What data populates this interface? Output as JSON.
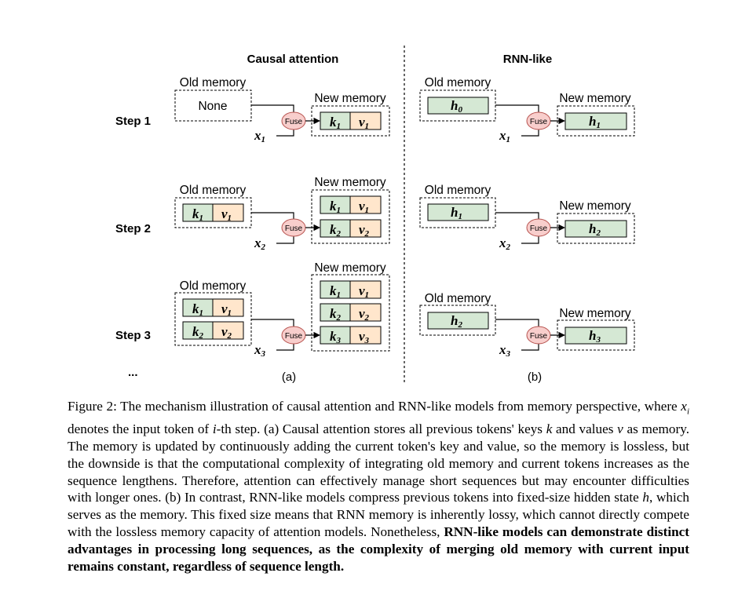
{
  "figure": {
    "left_title": "Causal attention",
    "right_title": "RNN-like",
    "step_labels": [
      "Step 1",
      "Step 2",
      "Step 3"
    ],
    "ellipsis": "...",
    "old_memory_label": "Old memory",
    "new_memory_label": "New memory",
    "none_label": "None",
    "fuse_label": "Fuse",
    "panel_a_label": "(a)",
    "panel_b_label": "(b)",
    "input_base": "x",
    "key_base": "k",
    "value_base": "v",
    "hidden_base": "h",
    "subscripts": [
      "0",
      "1",
      "2",
      "3"
    ],
    "colors": {
      "key_fill": "#d5e8d4",
      "value_fill": "#ffe6cc",
      "hidden_fill": "#d5e8d4",
      "fuse_fill": "#f8cecc",
      "fuse_stroke": "#b85450"
    }
  },
  "caption": {
    "fig_label": "Figure 2:",
    "t1": " The mechanism illustration of causal attention and RNN-like models from memory perspective, where ",
    "xi_base": "x",
    "xi_sub": "i",
    "t2": " denotes the input token of ",
    "i_var": "i",
    "t3": "-th step. (a) Causal attention stores all previous tokens' keys ",
    "k_var": "k",
    "t4": " and values ",
    "v_var": "v",
    "t5": " as memory. The memory is updated by continuously adding the current token's key and value, so the memory is lossless, but the downside is that the computational complexity of integrating old memory and current tokens increases as the sequence lengthens. Therefore, attention can effectively manage short sequences but may encounter difficulties with longer ones. (b) In contrast, RNN-like models compress previous tokens into fixed-size hidden state ",
    "h_var": "h",
    "t6": ", which serves as the memory. This fixed size means that RNN memory is inherently lossy, which cannot directly compete with the lossless memory capacity of attention models. Nonetheless, ",
    "bold": "RNN-like models can demonstrate distinct advantages in processing long sequences, as the complexity of merging old memory with current input remains constant, regardless of sequence length."
  }
}
